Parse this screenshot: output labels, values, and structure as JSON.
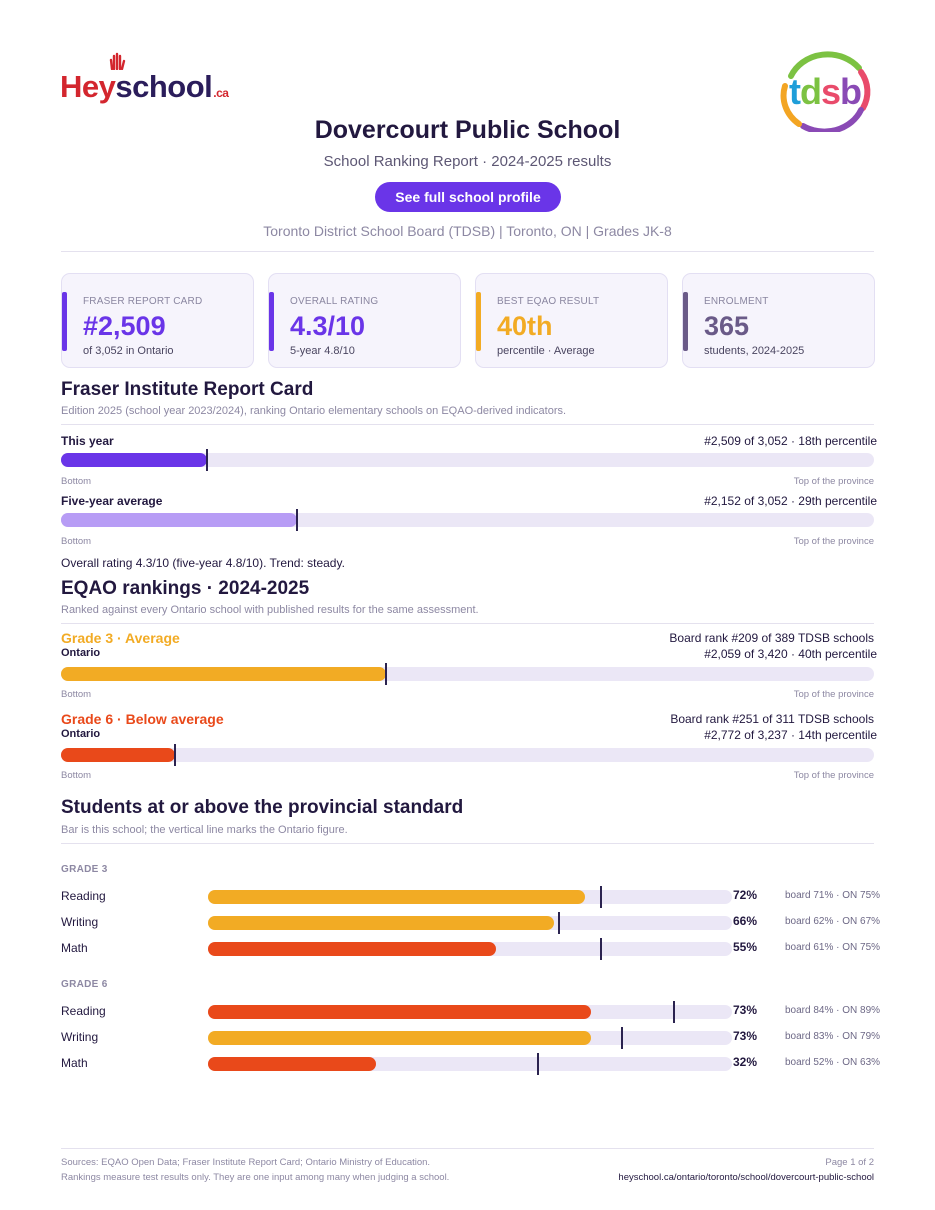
{
  "brand": {
    "hey": "Hey",
    "school": "school",
    "ca": ".ca"
  },
  "board_logo": {
    "text": "tdsb"
  },
  "header": {
    "title": "Dovercourt Public School",
    "subtitle": "School Ranking Report  ·  2024-2025 results",
    "profile_button": "See full school profile",
    "meta": "Toronto District School Board (TDSB)  |  Toronto, ON  |  Grades JK-8"
  },
  "cards": [
    {
      "label": "FRASER REPORT CARD",
      "value": "#2,509",
      "sub": "of 3,052 in Ontario",
      "color": "#6a35e8"
    },
    {
      "label": "OVERALL RATING",
      "value": "4.3/10",
      "sub": "5-year 4.8/10",
      "color": "#6a35e8"
    },
    {
      "label": "BEST EQAO RESULT",
      "value": "40th",
      "sub": "percentile  ·  Average",
      "color": "#f2ab24"
    },
    {
      "label": "ENROLMENT",
      "value": "365",
      "sub": "students, 2024-2025",
      "color": "#6a5a88"
    }
  ],
  "fraser": {
    "heading": "Fraser Institute Report Card",
    "note": "Edition 2025 (school year 2023/2024), ranking Ontario elementary schools on EQAO-derived indicators.",
    "rows": [
      {
        "label": "This year",
        "rank": "#2,509 of 3,052  ·  18th percentile",
        "percentile": 18,
        "color": "#6a35e8"
      },
      {
        "label": "Five-year average",
        "rank": "#2,152 of 3,052  ·  29th percentile",
        "percentile": 29,
        "color": "#b79cf5"
      }
    ],
    "bottom_label": "Bottom",
    "top_label": "Top of the province",
    "summary": "Overall rating 4.3/10 (five-year 4.8/10). Trend: steady."
  },
  "eqao": {
    "heading": "EQAO rankings  ·  2024-2025",
    "note": "Ranked against every Ontario school with published results for the same assessment.",
    "rows": [
      {
        "grade": "Grade 3  ·  Average",
        "scope": "Ontario",
        "board_rank": "Board rank #209 of 389 TDSB schools",
        "ontario_rank": "#2,059 of 3,420  ·  40th percentile",
        "percentile": 40,
        "color": "#f2ab24"
      },
      {
        "grade": "Grade 6  ·  Below average",
        "scope": "Ontario",
        "board_rank": "Board rank #251 of 311 TDSB schools",
        "ontario_rank": "#2,772 of 3,237  ·  14th percentile",
        "percentile": 14,
        "color": "#e9491a"
      }
    ],
    "bottom_label": "Bottom",
    "top_label": "Top of the province"
  },
  "standard": {
    "heading": "Students at or above the provincial standard",
    "note": "Bar is this school; the vertical line marks the Ontario figure.",
    "groups": [
      {
        "name": "GRADE 3",
        "rows": [
          {
            "subject": "Reading",
            "pct": 72,
            "pct_label": "72%",
            "board": "board 71%  ·  ON 75%",
            "ontario": 75,
            "color": "#f2ab24"
          },
          {
            "subject": "Writing",
            "pct": 66,
            "pct_label": "66%",
            "board": "board 62%  ·  ON 67%",
            "ontario": 67,
            "color": "#f2ab24"
          },
          {
            "subject": "Math",
            "pct": 55,
            "pct_label": "55%",
            "board": "board 61%  ·  ON 75%",
            "ontario": 75,
            "color": "#e9491a"
          }
        ]
      },
      {
        "name": "GRADE 6",
        "rows": [
          {
            "subject": "Reading",
            "pct": 73,
            "pct_label": "73%",
            "board": "board 84%  ·  ON 89%",
            "ontario": 89,
            "color": "#e9491a"
          },
          {
            "subject": "Writing",
            "pct": 73,
            "pct_label": "73%",
            "board": "board 83%  ·  ON 79%",
            "ontario": 79,
            "color": "#f2ab24"
          },
          {
            "subject": "Math",
            "pct": 32,
            "pct_label": "32%",
            "board": "board 52%  ·  ON 63%",
            "ontario": 63,
            "color": "#e9491a"
          }
        ]
      }
    ]
  },
  "footer": {
    "sources": "Sources: EQAO Open Data; Fraser Institute Report Card; Ontario Ministry of Education.",
    "disclaimer": "Rankings measure test results only. They are one input among many when judging a school.",
    "page": "Page 1 of 2",
    "url": "heyschool.ca/ontario/toronto/school/dovercourt-public-school"
  }
}
